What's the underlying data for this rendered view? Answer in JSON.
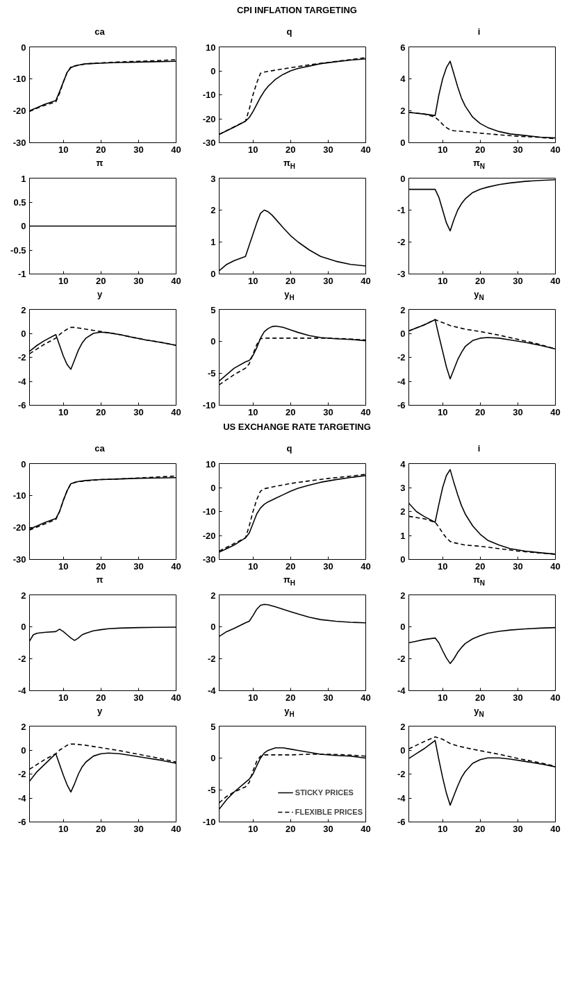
{
  "chart_data": [
    {
      "type": "other",
      "title": "CPI INFLATION TARGETING"
    },
    {
      "type": "line",
      "title": "ca",
      "xlim": [
        1,
        40
      ],
      "xticks": [
        10,
        20,
        30,
        40
      ],
      "ylim": [
        -30,
        0
      ],
      "yticks": [
        -30,
        -20,
        -10,
        0
      ],
      "grid": false,
      "series": [
        {
          "color": "#000000",
          "line_style": "solid",
          "x": [
            1,
            3,
            5,
            8,
            9,
            10,
            11,
            12,
            13,
            14,
            15,
            16,
            18,
            20,
            22,
            25,
            28,
            32,
            36,
            40
          ],
          "values": [
            -20,
            -19,
            -18,
            -16.8,
            -14,
            -11,
            -8,
            -6.5,
            -6,
            -5.7,
            -5.5,
            -5.3,
            -5.2,
            -5.1,
            -5,
            -4.9,
            -4.8,
            -4.7,
            -4.6,
            -4.5
          ]
        },
        {
          "color": "#000000",
          "line_style": "dashed",
          "x": [
            1,
            3,
            5,
            8,
            9,
            10,
            11,
            12,
            13,
            14,
            16,
            20,
            25,
            30,
            35,
            40
          ],
          "values": [
            -20.2,
            -19.2,
            -18.3,
            -17.2,
            -14.5,
            -11,
            -8,
            -6.3,
            -6,
            -5.7,
            -5.3,
            -5,
            -4.7,
            -4.5,
            -4.3,
            -4
          ]
        }
      ]
    },
    {
      "type": "line",
      "title": "q",
      "xlim": [
        1,
        40
      ],
      "xticks": [
        10,
        20,
        30,
        40
      ],
      "ylim": [
        -30,
        10
      ],
      "yticks": [
        -30,
        -20,
        -10,
        0,
        10
      ],
      "grid": false,
      "series": [
        {
          "color": "#000000",
          "line_style": "solid",
          "x": [
            1,
            3,
            5,
            8,
            9,
            10,
            11,
            12,
            13,
            14,
            15,
            16,
            18,
            20,
            22,
            25,
            28,
            32,
            36,
            40
          ],
          "values": [
            -26.5,
            -25,
            -23.5,
            -21,
            -19.5,
            -17,
            -14,
            -11,
            -8.5,
            -6.5,
            -5,
            -3.5,
            -1.5,
            0,
            1,
            2,
            3,
            3.8,
            4.5,
            5
          ]
        },
        {
          "color": "#000000",
          "line_style": "dashed",
          "x": [
            1,
            8,
            9,
            10,
            11,
            12,
            13,
            16,
            20,
            25,
            30,
            35,
            40
          ],
          "values": [
            -26.5,
            -21,
            -16,
            -10,
            -5,
            -1,
            -0.5,
            0.3,
            1.3,
            2.5,
            3.5,
            4.5,
            5.5
          ]
        }
      ]
    },
    {
      "type": "line",
      "title": "i",
      "xlim": [
        1,
        40
      ],
      "xticks": [
        10,
        20,
        30,
        40
      ],
      "ylim": [
        0,
        6
      ],
      "yticks": [
        0,
        2,
        4,
        6
      ],
      "grid": false,
      "series": [
        {
          "color": "#000000",
          "line_style": "solid",
          "x": [
            1,
            3,
            5,
            8,
            9,
            10,
            11,
            12,
            13,
            14,
            15,
            16,
            18,
            20,
            22,
            25,
            28,
            32,
            36,
            40
          ],
          "values": [
            1.9,
            1.85,
            1.8,
            1.7,
            3,
            4,
            4.7,
            5.1,
            4.3,
            3.5,
            2.8,
            2.3,
            1.6,
            1.2,
            0.95,
            0.7,
            0.55,
            0.45,
            0.35,
            0.3
          ]
        },
        {
          "color": "#000000",
          "line_style": "dashed",
          "x": [
            1,
            5,
            8,
            9,
            10,
            11,
            12,
            13,
            16,
            20,
            25,
            30,
            35,
            40
          ],
          "values": [
            1.9,
            1.8,
            1.6,
            1.4,
            1.15,
            0.95,
            0.8,
            0.75,
            0.7,
            0.6,
            0.5,
            0.4,
            0.35,
            0.25
          ]
        }
      ]
    },
    {
      "type": "line",
      "title": "π",
      "xlim": [
        1,
        40
      ],
      "xticks": [
        10,
        20,
        30,
        40
      ],
      "ylim": [
        -1,
        1
      ],
      "yticks": [
        -1,
        -0.5,
        0,
        0.5,
        1
      ],
      "grid": false,
      "series": [
        {
          "color": "#000000",
          "line_style": "solid",
          "x": [
            1,
            40
          ],
          "values": [
            0,
            0
          ]
        }
      ]
    },
    {
      "type": "line",
      "title": "π$_{H}$",
      "xlim": [
        1,
        40
      ],
      "xticks": [
        10,
        20,
        30,
        40
      ],
      "ylim": [
        0,
        3
      ],
      "yticks": [
        0,
        1,
        2,
        3
      ],
      "grid": false,
      "series": [
        {
          "color": "#000000",
          "line_style": "solid",
          "x": [
            1,
            3,
            5,
            8,
            9,
            10,
            11,
            12,
            13,
            14,
            15,
            16,
            18,
            20,
            22,
            25,
            28,
            32,
            36,
            40
          ],
          "values": [
            0.1,
            0.3,
            0.42,
            0.55,
            0.9,
            1.25,
            1.6,
            1.9,
            2,
            1.95,
            1.85,
            1.72,
            1.45,
            1.2,
            1,
            0.75,
            0.55,
            0.4,
            0.3,
            0.25
          ]
        }
      ]
    },
    {
      "type": "line",
      "title": "π$_{N}$",
      "xlim": [
        1,
        40
      ],
      "xticks": [
        10,
        20,
        30,
        40
      ],
      "ylim": [
        -3,
        0
      ],
      "yticks": [
        -3,
        -2,
        -1,
        0
      ],
      "grid": false,
      "series": [
        {
          "color": "#000000",
          "line_style": "solid",
          "x": [
            1,
            5,
            8,
            9,
            10,
            11,
            12,
            13,
            14,
            15,
            16,
            18,
            20,
            22,
            25,
            28,
            32,
            36,
            40
          ],
          "values": [
            -0.35,
            -0.35,
            -0.35,
            -0.6,
            -1,
            -1.4,
            -1.65,
            -1.3,
            -1,
            -0.8,
            -0.65,
            -0.45,
            -0.35,
            -0.28,
            -0.2,
            -0.15,
            -0.1,
            -0.07,
            -0.05
          ]
        }
      ]
    },
    {
      "type": "line",
      "title": "y",
      "xlim": [
        1,
        40
      ],
      "xticks": [
        10,
        20,
        30,
        40
      ],
      "ylim": [
        -6,
        2
      ],
      "yticks": [
        -6,
        -4,
        -2,
        0,
        2
      ],
      "grid": false,
      "series": [
        {
          "color": "#000000",
          "line_style": "solid",
          "x": [
            1,
            3,
            5,
            8,
            9,
            10,
            11,
            12,
            13,
            14,
            15,
            16,
            18,
            20,
            22,
            25,
            28,
            32,
            36,
            40
          ],
          "values": [
            -1.5,
            -1,
            -0.6,
            -0.1,
            -1,
            -1.9,
            -2.6,
            -3,
            -2.2,
            -1.4,
            -0.8,
            -0.4,
            0,
            0.1,
            0.05,
            -0.1,
            -0.3,
            -0.55,
            -0.75,
            -1
          ]
        },
        {
          "color": "#000000",
          "line_style": "dashed",
          "x": [
            1,
            3,
            5,
            8,
            9,
            10,
            11,
            12,
            13,
            14,
            16,
            18,
            20,
            22,
            25,
            28,
            32,
            36,
            40
          ],
          "values": [
            -1.7,
            -1.3,
            -0.9,
            -0.4,
            -0.1,
            0.15,
            0.35,
            0.5,
            0.5,
            0.45,
            0.35,
            0.25,
            0.15,
            0.05,
            -0.1,
            -0.3,
            -0.55,
            -0.75,
            -1
          ]
        }
      ]
    },
    {
      "type": "line",
      "title": "y$_{H}$",
      "xlim": [
        1,
        40
      ],
      "xticks": [
        10,
        20,
        30,
        40
      ],
      "ylim": [
        -10,
        5
      ],
      "yticks": [
        -10,
        -5,
        0,
        5
      ],
      "grid": false,
      "series": [
        {
          "color": "#000000",
          "line_style": "solid",
          "x": [
            1,
            3,
            5,
            8,
            9,
            10,
            11,
            12,
            13,
            14,
            15,
            16,
            18,
            20,
            22,
            25,
            28,
            32,
            36,
            40
          ],
          "values": [
            -6.2,
            -5.2,
            -4.2,
            -3.2,
            -3,
            -2.2,
            -1,
            0.5,
            1.5,
            2,
            2.3,
            2.4,
            2.2,
            1.8,
            1.4,
            0.9,
            0.6,
            0.4,
            0.3,
            0.1
          ]
        },
        {
          "color": "#000000",
          "line_style": "dashed",
          "x": [
            1,
            3,
            5,
            8,
            9,
            10,
            11,
            12,
            13,
            16,
            20,
            25,
            30,
            35,
            40
          ],
          "values": [
            -6.8,
            -6,
            -5.2,
            -4.2,
            -3.5,
            -2,
            -0.5,
            0.4,
            0.5,
            0.5,
            0.5,
            0.5,
            0.5,
            0.4,
            0.2
          ]
        }
      ]
    },
    {
      "type": "line",
      "title": "y$_{N}$",
      "xlim": [
        1,
        40
      ],
      "xticks": [
        10,
        20,
        30,
        40
      ],
      "ylim": [
        -6,
        2
      ],
      "yticks": [
        -6,
        -4,
        -2,
        0,
        2
      ],
      "grid": false,
      "series": [
        {
          "color": "#000000",
          "line_style": "solid",
          "x": [
            1,
            3,
            5,
            8,
            9,
            10,
            11,
            12,
            13,
            14,
            15,
            16,
            18,
            20,
            22,
            25,
            28,
            32,
            36,
            40
          ],
          "values": [
            0.2,
            0.45,
            0.7,
            1.15,
            -0.2,
            -1.5,
            -2.8,
            -3.8,
            -3,
            -2.2,
            -1.6,
            -1.1,
            -0.6,
            -0.4,
            -0.35,
            -0.4,
            -0.55,
            -0.75,
            -1,
            -1.3
          ]
        },
        {
          "color": "#000000",
          "line_style": "dashed",
          "x": [
            1,
            5,
            8,
            10,
            12,
            14,
            16,
            20,
            25,
            30,
            35,
            40
          ],
          "values": [
            0.2,
            0.7,
            1.15,
            0.9,
            0.65,
            0.5,
            0.35,
            0.15,
            -0.15,
            -0.5,
            -0.85,
            -1.3
          ]
        }
      ]
    },
    {
      "type": "other",
      "title": "US EXCHANGE RATE TARGETING"
    },
    {
      "type": "line",
      "title": "ca",
      "xlim": [
        1,
        40
      ],
      "xticks": [
        10,
        20,
        30,
        40
      ],
      "ylim": [
        -30,
        0
      ],
      "yticks": [
        -30,
        -20,
        -10,
        0
      ],
      "grid": false,
      "series": [
        {
          "color": "#000000",
          "line_style": "solid",
          "x": [
            1,
            3,
            5,
            8,
            9,
            10,
            11,
            12,
            13,
            14,
            16,
            18,
            20,
            25,
            30,
            35,
            40
          ],
          "values": [
            -20.5,
            -19.5,
            -18.5,
            -17.2,
            -15,
            -11.5,
            -8.5,
            -6.3,
            -5.9,
            -5.6,
            -5.3,
            -5.1,
            -5,
            -4.8,
            -4.6,
            -4.5,
            -4.4
          ]
        },
        {
          "color": "#000000",
          "line_style": "dashed",
          "x": [
            1,
            8,
            9,
            10,
            11,
            12,
            14,
            20,
            25,
            30,
            35,
            40
          ],
          "values": [
            -20.8,
            -17.5,
            -15,
            -11.5,
            -8.5,
            -6.3,
            -5.6,
            -5,
            -4.8,
            -4.5,
            -4.2,
            -3.9
          ]
        }
      ]
    },
    {
      "type": "line",
      "title": "q",
      "xlim": [
        1,
        40
      ],
      "xticks": [
        10,
        20,
        30,
        40
      ],
      "ylim": [
        -30,
        10
      ],
      "yticks": [
        -30,
        -20,
        -10,
        0,
        10
      ],
      "grid": false,
      "series": [
        {
          "color": "#000000",
          "line_style": "solid",
          "x": [
            1,
            3,
            5,
            8,
            9,
            10,
            11,
            12,
            13,
            14,
            16,
            18,
            20,
            22,
            25,
            28,
            32,
            36,
            40
          ],
          "values": [
            -27,
            -25.5,
            -24,
            -21,
            -19,
            -15,
            -11,
            -8.5,
            -7,
            -6,
            -4.5,
            -3,
            -1.5,
            -0.3,
            1,
            2.2,
            3.3,
            4.2,
            5
          ]
        },
        {
          "color": "#000000",
          "line_style": "dashed",
          "x": [
            1,
            8,
            9,
            10,
            11,
            12,
            13,
            16,
            20,
            25,
            30,
            35,
            40
          ],
          "values": [
            -26.5,
            -21,
            -16,
            -10,
            -5,
            -1.5,
            -0.5,
            0.5,
            1.7,
            2.8,
            3.8,
            4.6,
            5.5
          ]
        }
      ]
    },
    {
      "type": "line",
      "title": "i",
      "xlim": [
        1,
        40
      ],
      "xticks": [
        10,
        20,
        30,
        40
      ],
      "ylim": [
        0,
        4
      ],
      "yticks": [
        0,
        1,
        2,
        3,
        4
      ],
      "grid": false,
      "series": [
        {
          "color": "#000000",
          "line_style": "solid",
          "x": [
            1,
            3,
            5,
            8,
            9,
            10,
            11,
            12,
            13,
            14,
            15,
            16,
            18,
            20,
            22,
            25,
            28,
            32,
            36,
            40
          ],
          "values": [
            2.35,
            2,
            1.8,
            1.55,
            2.3,
            3,
            3.5,
            3.75,
            3.2,
            2.7,
            2.25,
            1.9,
            1.4,
            1.05,
            0.8,
            0.6,
            0.45,
            0.35,
            0.28,
            0.22
          ]
        },
        {
          "color": "#000000",
          "line_style": "dashed",
          "x": [
            1,
            5,
            8,
            9,
            10,
            11,
            12,
            13,
            16,
            20,
            25,
            30,
            35,
            40
          ],
          "values": [
            1.8,
            1.7,
            1.55,
            1.35,
            1.1,
            0.9,
            0.75,
            0.7,
            0.6,
            0.55,
            0.45,
            0.35,
            0.28,
            0.22
          ]
        }
      ]
    },
    {
      "type": "line",
      "title": "π",
      "xlim": [
        1,
        40
      ],
      "xticks": [
        10,
        20,
        30,
        40
      ],
      "ylim": [
        -4,
        2
      ],
      "yticks": [
        -4,
        -2,
        0,
        2
      ],
      "grid": false,
      "series": [
        {
          "color": "#000000",
          "line_style": "solid",
          "x": [
            1,
            2,
            3,
            5,
            8,
            9,
            10,
            11,
            12,
            13,
            14,
            15,
            16,
            18,
            20,
            22,
            25,
            30,
            35,
            40
          ],
          "values": [
            -0.9,
            -0.5,
            -0.4,
            -0.35,
            -0.3,
            -0.15,
            -0.3,
            -0.5,
            -0.7,
            -0.85,
            -0.7,
            -0.5,
            -0.4,
            -0.25,
            -0.18,
            -0.12,
            -0.08,
            -0.05,
            -0.03,
            -0.02
          ]
        }
      ]
    },
    {
      "type": "line",
      "title": "π$_{H}$",
      "xlim": [
        1,
        40
      ],
      "xticks": [
        10,
        20,
        30,
        40
      ],
      "ylim": [
        -4,
        2
      ],
      "yticks": [
        -4,
        -2,
        0,
        2
      ],
      "grid": false,
      "series": [
        {
          "color": "#000000",
          "line_style": "solid",
          "x": [
            1,
            3,
            5,
            8,
            9,
            10,
            11,
            12,
            13,
            14,
            16,
            18,
            20,
            22,
            25,
            28,
            32,
            36,
            40
          ],
          "values": [
            -0.6,
            -0.3,
            -0.1,
            0.25,
            0.35,
            0.7,
            1.1,
            1.35,
            1.4,
            1.38,
            1.25,
            1.1,
            0.95,
            0.8,
            0.6,
            0.45,
            0.35,
            0.28,
            0.25
          ]
        }
      ]
    },
    {
      "type": "line",
      "title": "π$_{N}$",
      "xlim": [
        1,
        40
      ],
      "xticks": [
        10,
        20,
        30,
        40
      ],
      "ylim": [
        -4,
        2
      ],
      "yticks": [
        -4,
        -2,
        0,
        2
      ],
      "grid": false,
      "series": [
        {
          "color": "#000000",
          "line_style": "solid",
          "x": [
            1,
            3,
            5,
            8,
            9,
            10,
            11,
            12,
            13,
            14,
            15,
            16,
            18,
            20,
            22,
            25,
            28,
            32,
            36,
            40
          ],
          "values": [
            -1,
            -0.9,
            -0.8,
            -0.7,
            -1,
            -1.5,
            -1.95,
            -2.3,
            -2,
            -1.6,
            -1.3,
            -1.05,
            -0.75,
            -0.55,
            -0.4,
            -0.28,
            -0.2,
            -0.13,
            -0.08,
            -0.05
          ]
        }
      ]
    },
    {
      "type": "line",
      "title": "y",
      "xlim": [
        1,
        40
      ],
      "xticks": [
        10,
        20,
        30,
        40
      ],
      "ylim": [
        -6,
        2
      ],
      "yticks": [
        -6,
        -4,
        -2,
        0,
        2
      ],
      "grid": false,
      "series": [
        {
          "color": "#000000",
          "line_style": "solid",
          "x": [
            1,
            3,
            5,
            8,
            9,
            10,
            11,
            12,
            13,
            14,
            15,
            16,
            18,
            20,
            22,
            25,
            28,
            32,
            36,
            40
          ],
          "values": [
            -2.6,
            -1.8,
            -1.2,
            -0.3,
            -1.2,
            -2.1,
            -2.9,
            -3.5,
            -2.8,
            -2,
            -1.4,
            -1,
            -0.5,
            -0.3,
            -0.25,
            -0.3,
            -0.45,
            -0.65,
            -0.85,
            -1.1
          ]
        },
        {
          "color": "#000000",
          "line_style": "dashed",
          "x": [
            1,
            3,
            5,
            8,
            9,
            10,
            11,
            12,
            13,
            16,
            20,
            25,
            30,
            35,
            40
          ],
          "values": [
            -1.6,
            -1.2,
            -0.8,
            -0.3,
            0,
            0.2,
            0.4,
            0.5,
            0.5,
            0.4,
            0.2,
            -0.05,
            -0.35,
            -0.65,
            -1
          ]
        }
      ]
    },
    {
      "type": "line",
      "title": "y$_{H}$",
      "xlim": [
        1,
        40
      ],
      "xticks": [
        10,
        20,
        30,
        40
      ],
      "ylim": [
        -10,
        5
      ],
      "yticks": [
        -10,
        -5,
        0,
        5
      ],
      "grid": false,
      "legend": "bottom right",
      "series": [
        {
          "name": "STICKY PRICES",
          "color": "#000000",
          "line_style": "solid",
          "x": [
            1,
            3,
            5,
            8,
            9,
            10,
            11,
            12,
            13,
            14,
            16,
            18,
            20,
            22,
            25,
            28,
            32,
            36,
            40
          ],
          "values": [
            -8,
            -6.5,
            -5.3,
            -3.8,
            -3.3,
            -2.5,
            -1.2,
            0,
            0.8,
            1.2,
            1.6,
            1.6,
            1.4,
            1.2,
            0.9,
            0.6,
            0.4,
            0.3,
            0
          ]
        },
        {
          "name": "FLEXIBLE PRICES",
          "color": "#000000",
          "line_style": "dashed",
          "x": [
            1,
            3,
            5,
            8,
            9,
            10,
            11,
            12,
            13,
            16,
            20,
            25,
            30,
            35,
            40
          ],
          "values": [
            -7,
            -6,
            -5.3,
            -4.5,
            -3.8,
            -2,
            -0.5,
            0.3,
            0.5,
            0.5,
            0.5,
            0.6,
            0.6,
            0.5,
            0.3
          ]
        }
      ]
    },
    {
      "type": "line",
      "title": "y$_{N}$",
      "xlim": [
        1,
        40
      ],
      "xticks": [
        10,
        20,
        30,
        40
      ],
      "ylim": [
        -6,
        2
      ],
      "yticks": [
        -6,
        -4,
        -2,
        0,
        2
      ],
      "grid": false,
      "series": [
        {
          "color": "#000000",
          "line_style": "solid",
          "x": [
            1,
            3,
            5,
            8,
            9,
            10,
            11,
            12,
            13,
            14,
            15,
            16,
            18,
            20,
            22,
            25,
            28,
            32,
            36,
            40
          ],
          "values": [
            -0.7,
            -0.3,
            0.1,
            0.8,
            -0.8,
            -2.3,
            -3.6,
            -4.6,
            -3.8,
            -3,
            -2.3,
            -1.8,
            -1.1,
            -0.8,
            -0.65,
            -0.65,
            -0.75,
            -0.95,
            -1.15,
            -1.4
          ]
        },
        {
          "color": "#000000",
          "line_style": "dashed",
          "x": [
            1,
            3,
            5,
            8,
            10,
            12,
            14,
            16,
            20,
            25,
            30,
            35,
            40
          ],
          "values": [
            0.1,
            0.4,
            0.7,
            1.1,
            0.9,
            0.55,
            0.35,
            0.2,
            -0.05,
            -0.35,
            -0.7,
            -1,
            -1.35
          ]
        }
      ]
    }
  ]
}
